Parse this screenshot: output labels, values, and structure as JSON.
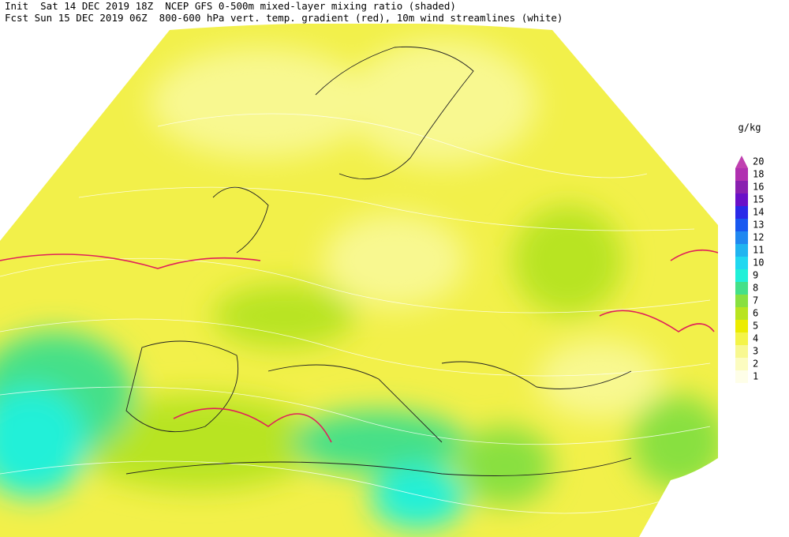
{
  "header": {
    "line1": "Init  Sat 14 DEC 2019 18Z  NCEP GFS 0-500m mixed-layer mixing ratio (shaded)",
    "line2": "Fcst Sun 15 DEC 2019 06Z  800-600 hPa vert. temp. gradient (red), 10m wind streamlines (white)"
  },
  "legend": {
    "unit": "g/kg",
    "items": [
      {
        "label": "20",
        "color": "#c040b0"
      },
      {
        "label": "18",
        "color": "#b030b0"
      },
      {
        "label": "16",
        "color": "#8a20b0"
      },
      {
        "label": "15",
        "color": "#6a10c8"
      },
      {
        "label": "14",
        "color": "#2a2ae8"
      },
      {
        "label": "13",
        "color": "#1858f0"
      },
      {
        "label": "12",
        "color": "#2088f0"
      },
      {
        "label": "11",
        "color": "#20b4f0"
      },
      {
        "label": "10",
        "color": "#20d8f0"
      },
      {
        "label": "9",
        "color": "#20f0d8"
      },
      {
        "label": "8",
        "color": "#44e088"
      },
      {
        "label": "7",
        "color": "#88e040"
      },
      {
        "label": "6",
        "color": "#b8e420"
      },
      {
        "label": "5",
        "color": "#ecec00"
      },
      {
        "label": "4",
        "color": "#f4f448"
      },
      {
        "label": "3",
        "color": "#f8f890"
      },
      {
        "label": "2",
        "color": "#fcfcc0"
      },
      {
        "label": "1",
        "color": "#fefee8"
      }
    ]
  }
}
